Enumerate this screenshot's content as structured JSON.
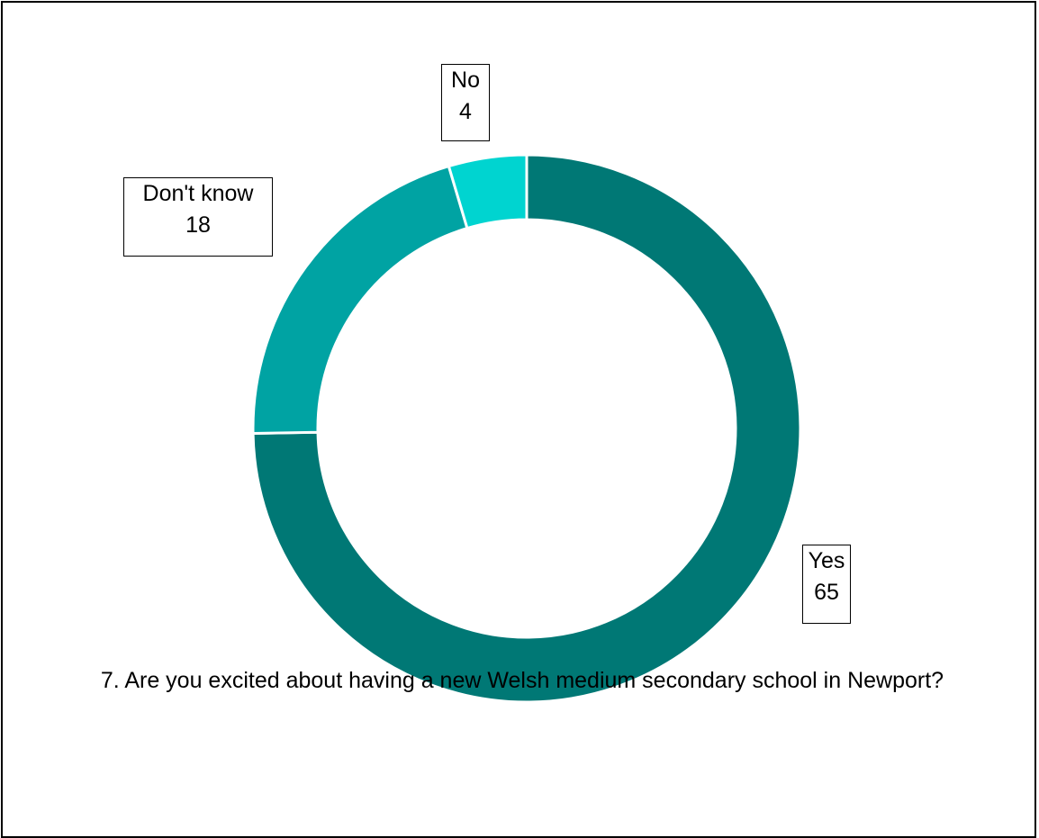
{
  "chart_data": {
    "type": "pie",
    "variant": "donut",
    "title": "7. Are you excited about having a new Welsh medium secondary school in Newport?",
    "categories": [
      "Yes",
      "Don't know",
      "No"
    ],
    "values": [
      65,
      18,
      4
    ],
    "colors": [
      "#007875",
      "#00a3a3",
      "#00d4d0"
    ],
    "legend": "none",
    "data_labels": "category-and-value"
  }
}
